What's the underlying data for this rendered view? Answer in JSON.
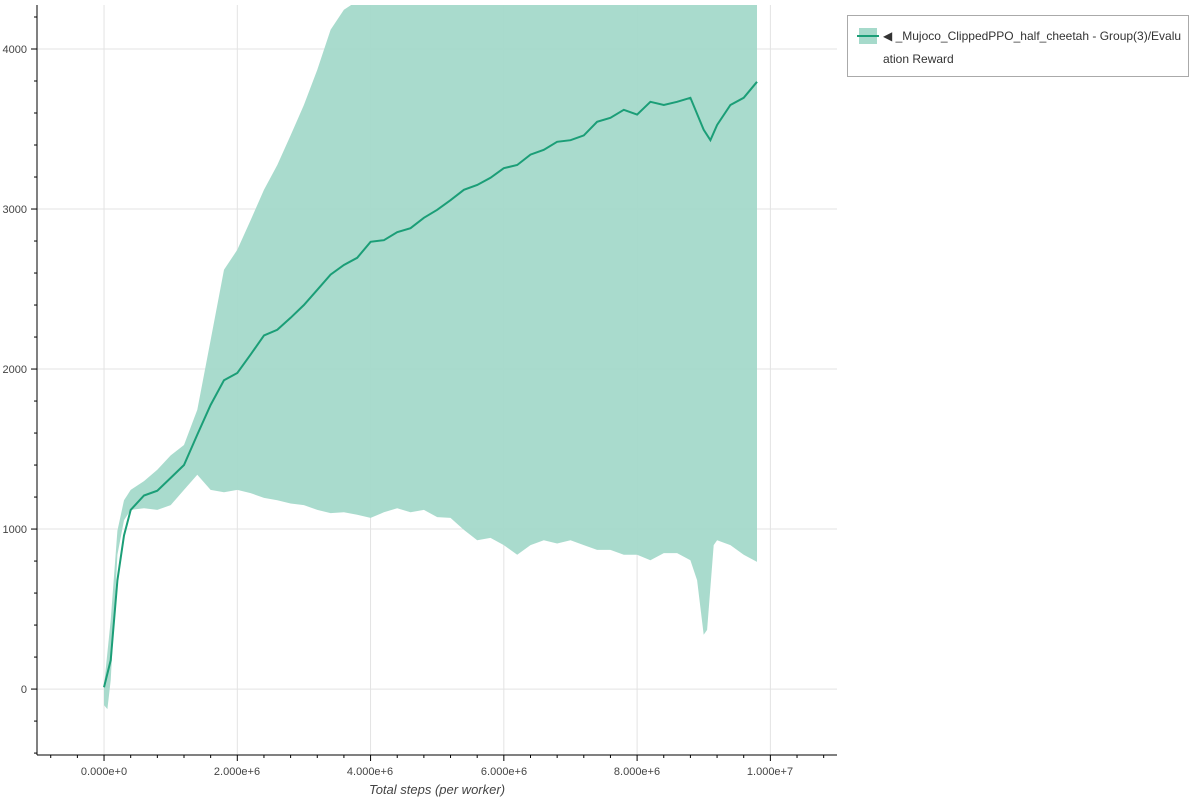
{
  "chart_data": {
    "type": "line",
    "title": "",
    "xlabel": "Total steps (per worker)",
    "ylabel": "",
    "xlim": [
      -1006000,
      11000000
    ],
    "ylim": [
      -412,
      4275
    ],
    "grid": true,
    "legend_placement": "outside-top-right",
    "x_ticks": [
      0,
      2000000,
      4000000,
      6000000,
      8000000,
      10000000
    ],
    "x_tick_labels": [
      "0.000e+0",
      "2.000e+6",
      "4.000e+6",
      "6.000e+6",
      "8.000e+6",
      "1.000e+7"
    ],
    "y_ticks": [
      0,
      1000,
      2000,
      3000,
      4000
    ],
    "y_tick_labels": [
      "0",
      "1000",
      "2000",
      "3000",
      "4000"
    ],
    "colors": {
      "line": "#1b9e77",
      "band": "#a6dacb"
    },
    "series": [
      {
        "name": "◀ _Mujoco_ClippedPPO_half_cheetah - Group(3)/Evaluation Reward",
        "legend_line1": "◀ _Mujoco_ClippedPPO_half_cheetah - Group(3)/Evalu",
        "legend_line2": "ation Reward",
        "mean": {
          "x": [
            0,
            100000,
            200000,
            300000,
            400000,
            600000,
            800000,
            1000000,
            1200000,
            1400000,
            1600000,
            1800000,
            2000000,
            2200000,
            2400000,
            2600000,
            2800000,
            3000000,
            3200000,
            3400000,
            3600000,
            3800000,
            4000000,
            4200000,
            4400000,
            4600000,
            4800000,
            5000000,
            5200000,
            5400000,
            5600000,
            5800000,
            6000000,
            6200000,
            6400000,
            6600000,
            6800000,
            7000000,
            7200000,
            7400000,
            7600000,
            7800000,
            8000000,
            8200000,
            8400000,
            8600000,
            8800000,
            9000000,
            9100000,
            9200000,
            9400000,
            9600000,
            9800000
          ],
          "y": [
            12,
            180,
            680,
            960,
            1120,
            1210,
            1240,
            1320,
            1400,
            1590,
            1775,
            1930,
            1975,
            2090,
            2210,
            2245,
            2320,
            2400,
            2495,
            2590,
            2650,
            2695,
            2795,
            2805,
            2855,
            2880,
            2945,
            2995,
            3055,
            3120,
            3150,
            3195,
            3255,
            3275,
            3340,
            3370,
            3420,
            3430,
            3460,
            3545,
            3570,
            3620,
            3590,
            3670,
            3650,
            3670,
            3695,
            3495,
            3430,
            3525,
            3650,
            3695,
            3795
          ]
        },
        "upper": {
          "x": [
            0,
            100000,
            200000,
            300000,
            400000,
            600000,
            800000,
            1000000,
            1200000,
            1400000,
            1600000,
            1800000,
            2000000,
            2200000,
            2400000,
            2600000,
            2800000,
            3000000,
            3200000,
            3400000,
            3600000,
            3800000,
            9800000
          ],
          "y": [
            20,
            430,
            990,
            1180,
            1245,
            1300,
            1370,
            1460,
            1525,
            1745,
            2180,
            2620,
            2745,
            2930,
            3120,
            3275,
            3460,
            3650,
            3870,
            4120,
            4245,
            4300,
            4300
          ]
        },
        "lower": {
          "x": [
            0,
            50000,
            100000,
            150000,
            200000,
            300000,
            400000,
            600000,
            800000,
            1000000,
            1200000,
            1400000,
            1600000,
            1800000,
            2000000,
            2200000,
            2400000,
            2600000,
            2800000,
            3000000,
            3200000,
            3400000,
            3600000,
            3800000,
            4000000,
            4200000,
            4400000,
            4600000,
            4800000,
            5000000,
            5200000,
            5400000,
            5600000,
            5800000,
            6000000,
            6200000,
            6400000,
            6600000,
            6800000,
            7000000,
            7200000,
            7400000,
            7600000,
            7800000,
            8000000,
            8200000,
            8400000,
            8600000,
            8800000,
            8900000,
            9000000,
            9050000,
            9150000,
            9200000,
            9400000,
            9600000,
            9800000
          ],
          "y": [
            -100,
            -125,
            55,
            430,
            840,
            1055,
            1120,
            1130,
            1120,
            1150,
            1245,
            1340,
            1245,
            1230,
            1245,
            1225,
            1195,
            1180,
            1160,
            1150,
            1120,
            1100,
            1105,
            1090,
            1070,
            1105,
            1130,
            1105,
            1120,
            1075,
            1070,
            995,
            930,
            945,
            900,
            840,
            900,
            930,
            910,
            930,
            900,
            870,
            870,
            840,
            840,
            805,
            850,
            850,
            805,
            680,
            340,
            370,
            900,
            930,
            900,
            840,
            795
          ]
        }
      }
    ]
  }
}
